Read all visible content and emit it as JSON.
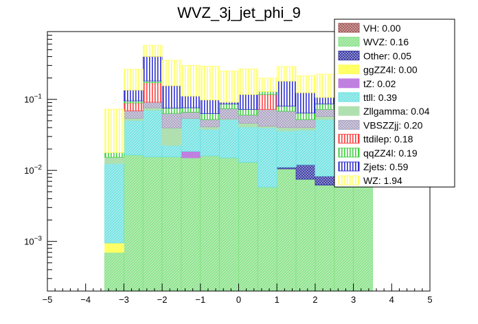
{
  "chart_data": {
    "type": "bar",
    "stacked": true,
    "title": "WVZ_3j_jet_phi_9",
    "xlabel": "",
    "ylabel": "",
    "y_scale": "log",
    "xlim": [
      -5,
      5
    ],
    "ylim": [
      0.0002,
      0.9
    ],
    "x_ticks": [
      -5,
      -4,
      -3,
      -2,
      -1,
      0,
      1,
      2,
      3,
      4,
      5
    ],
    "y_ticks": [
      {
        "value": 0.001,
        "base": "10",
        "exp": "−3"
      },
      {
        "value": 0.01,
        "base": "10",
        "exp": "−2"
      },
      {
        "value": 0.1,
        "base": "10",
        "exp": "−1"
      }
    ],
    "bin_edges": [
      -3.5,
      -3.0,
      -2.5,
      -2.0,
      -1.5,
      -1.0,
      -0.5,
      0.0,
      0.5,
      1.0,
      1.5,
      2.0,
      2.5,
      3.0,
      3.5
    ],
    "legend_position": "top-right",
    "series": [
      {
        "name": "VH: 0.00",
        "color": "#a05050",
        "pattern": "crosshatch",
        "values": [
          0,
          0,
          0,
          0,
          0,
          0,
          0,
          0,
          0,
          0,
          0,
          0,
          0,
          0
        ]
      },
      {
        "name": "WVZ: 0.16",
        "color": "#80e080",
        "pattern": "diag",
        "values": [
          0.0007,
          0.0165,
          0.0155,
          0.0155,
          0.015,
          0.016,
          0.015,
          0.013,
          0.0058,
          0.0105,
          0.0075,
          0.0062,
          0.0165,
          0.012
        ]
      },
      {
        "name": "Other: 0.05",
        "color": "#3030a0",
        "pattern": "crosshatch",
        "values": [
          0,
          0,
          0,
          0,
          0,
          0,
          0,
          0,
          0,
          0.0006,
          0.0045,
          0.0021,
          0.0015,
          0.0005
        ]
      },
      {
        "name": "ggZZ4l: 0.00",
        "color": "#ffff66",
        "pattern": "solid",
        "values": [
          0.00025,
          0,
          0,
          0,
          0,
          0,
          0,
          0,
          0,
          0,
          0,
          0,
          0,
          0
        ]
      },
      {
        "name": "tZ: 0.02",
        "color": "#c080e0",
        "pattern": "solid",
        "values": [
          0,
          0,
          0,
          0,
          0.0035,
          0,
          0,
          0,
          0,
          0,
          0,
          0,
          0.007,
          0
        ]
      },
      {
        "name": "ttll: 0.39",
        "color": "#66e0e0",
        "pattern": "diag",
        "values": [
          0.0115,
          0.034,
          0.055,
          0.007,
          0.035,
          0.022,
          0.037,
          0.028,
          0.034,
          0.025,
          0.025,
          0.044,
          0.037,
          0.04
        ]
      },
      {
        "name": "Zllgamma: 0.04",
        "color": "#b0e0b0",
        "pattern": "solid",
        "values": [
          0.0028,
          0.0035,
          0.0055,
          0.017,
          0.0005,
          0.003,
          0.001,
          0.005,
          0.002,
          0.004,
          0.003,
          0.005,
          0.005,
          0.006
        ]
      },
      {
        "name": "VBSZZjj: 0.20",
        "color": "#a8a0c0",
        "pattern": "crosshatch",
        "values": [
          0,
          0.015,
          0.015,
          0.024,
          0.012,
          0.011,
          0.021,
          0.014,
          0.03,
          0.028,
          0.012,
          0.015,
          0.014,
          0.01
        ]
      },
      {
        "name": "ttdilep: 0.18",
        "color": "#ff4040",
        "pattern": "vlines",
        "values": [
          0,
          0.02,
          0.08,
          0,
          0,
          0,
          0,
          0,
          0.045,
          0,
          0,
          0,
          0,
          0
        ]
      },
      {
        "name": "qqZZ4l: 0.19",
        "color": "#40d040",
        "pattern": "vlines",
        "values": [
          0.0025,
          0.006,
          0.01,
          0.012,
          0.01,
          0.011,
          0.012,
          0.012,
          0.012,
          0.012,
          0.012,
          0.014,
          0.014,
          0.01
        ]
      },
      {
        "name": "Zjets: 0.59",
        "color": "#3030d0",
        "pattern": "vlines",
        "values": [
          0,
          0.04,
          0.22,
          0.08,
          0.035,
          0.035,
          0.005,
          0.045,
          0,
          0.1,
          0.06,
          0.02,
          0.045,
          0.035
        ]
      },
      {
        "name": "WZ: 1.94",
        "color": "#ffff66",
        "pattern": "vlines",
        "values": [
          0.055,
          0.13,
          0.175,
          0.2,
          0.19,
          0.195,
          0.16,
          0.15,
          0.07,
          0.11,
          0.09,
          0.12,
          0.14,
          0.12
        ]
      }
    ]
  }
}
